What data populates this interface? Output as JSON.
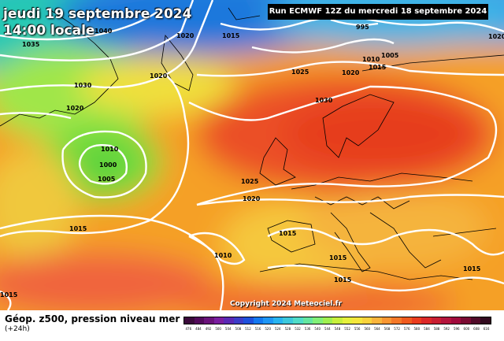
{
  "header": {
    "date_line": "jeudi 19 septembre 2024",
    "time_line": "14:00 locale",
    "run_info": "Run ECMWF 12Z du mercredi 18 septembre 2024"
  },
  "map": {
    "copyright": "Copyright 2024 Meteociel.fr",
    "pressure_labels": [
      {
        "id": "1040",
        "text": "1040"
      },
      {
        "id": "1035",
        "text": "1035"
      },
      {
        "id": "1030a",
        "text": "1030"
      },
      {
        "id": "1020a",
        "text": "1020"
      },
      {
        "id": "1020b",
        "text": "1020"
      },
      {
        "id": "1015a",
        "text": "1015"
      },
      {
        "id": "1020c",
        "text": "1020"
      },
      {
        "id": "1025a",
        "text": "1025"
      },
      {
        "id": "995",
        "text": "995"
      },
      {
        "id": "1010a",
        "text": "1010"
      },
      {
        "id": "1005a",
        "text": "1005"
      },
      {
        "id": "1015b",
        "text": "1015"
      },
      {
        "id": "1020d",
        "text": "1020"
      },
      {
        "id": "1030b",
        "text": "1030"
      },
      {
        "id": "1020e",
        "text": "1020"
      },
      {
        "id": "1010b",
        "text": "1010"
      },
      {
        "id": "1000",
        "text": "1000"
      },
      {
        "id": "1005b",
        "text": "1005"
      },
      {
        "id": "1025b",
        "text": "1025"
      },
      {
        "id": "1020f",
        "text": "1020"
      },
      {
        "id": "1015c",
        "text": "1015"
      },
      {
        "id": "1010c",
        "text": "1010"
      },
      {
        "id": "1015d",
        "text": "1015"
      },
      {
        "id": "1015e",
        "text": "1015"
      },
      {
        "id": "1015f",
        "text": "1015"
      },
      {
        "id": "1015g",
        "text": "1015"
      },
      {
        "id": "1015h",
        "text": "1015"
      }
    ]
  },
  "footer": {
    "title": "Géop. z500, pression niveau mer",
    "subtitle": "(+24h)",
    "scale_colors": [
      "#3a0a3a",
      "#520a5a",
      "#6a127a",
      "#7a1ea0",
      "#5a28b4",
      "#3c3cc8",
      "#1e50dc",
      "#1478f0",
      "#1e96f5",
      "#28b4f0",
      "#3cc8dc",
      "#50dcc8",
      "#64e6a0",
      "#82f078",
      "#a0f050",
      "#c8f03c",
      "#e6f03c",
      "#f5e63c",
      "#fad23c",
      "#fab43c",
      "#fa9632",
      "#f57828",
      "#f05a1e",
      "#eb3c1e",
      "#dc2828",
      "#c81e32",
      "#b4143c",
      "#a00a3c",
      "#7a0a32",
      "#500a28",
      "#320a1e"
    ],
    "scale_labels": [
      "476",
      "484",
      "492",
      "500",
      "504",
      "508",
      "512",
      "516",
      "520",
      "524",
      "528",
      "532",
      "536",
      "540",
      "544",
      "548",
      "552",
      "556",
      "560",
      "564",
      "568",
      "572",
      "576",
      "580",
      "584",
      "588",
      "592",
      "596",
      "600",
      "608",
      "616"
    ]
  }
}
